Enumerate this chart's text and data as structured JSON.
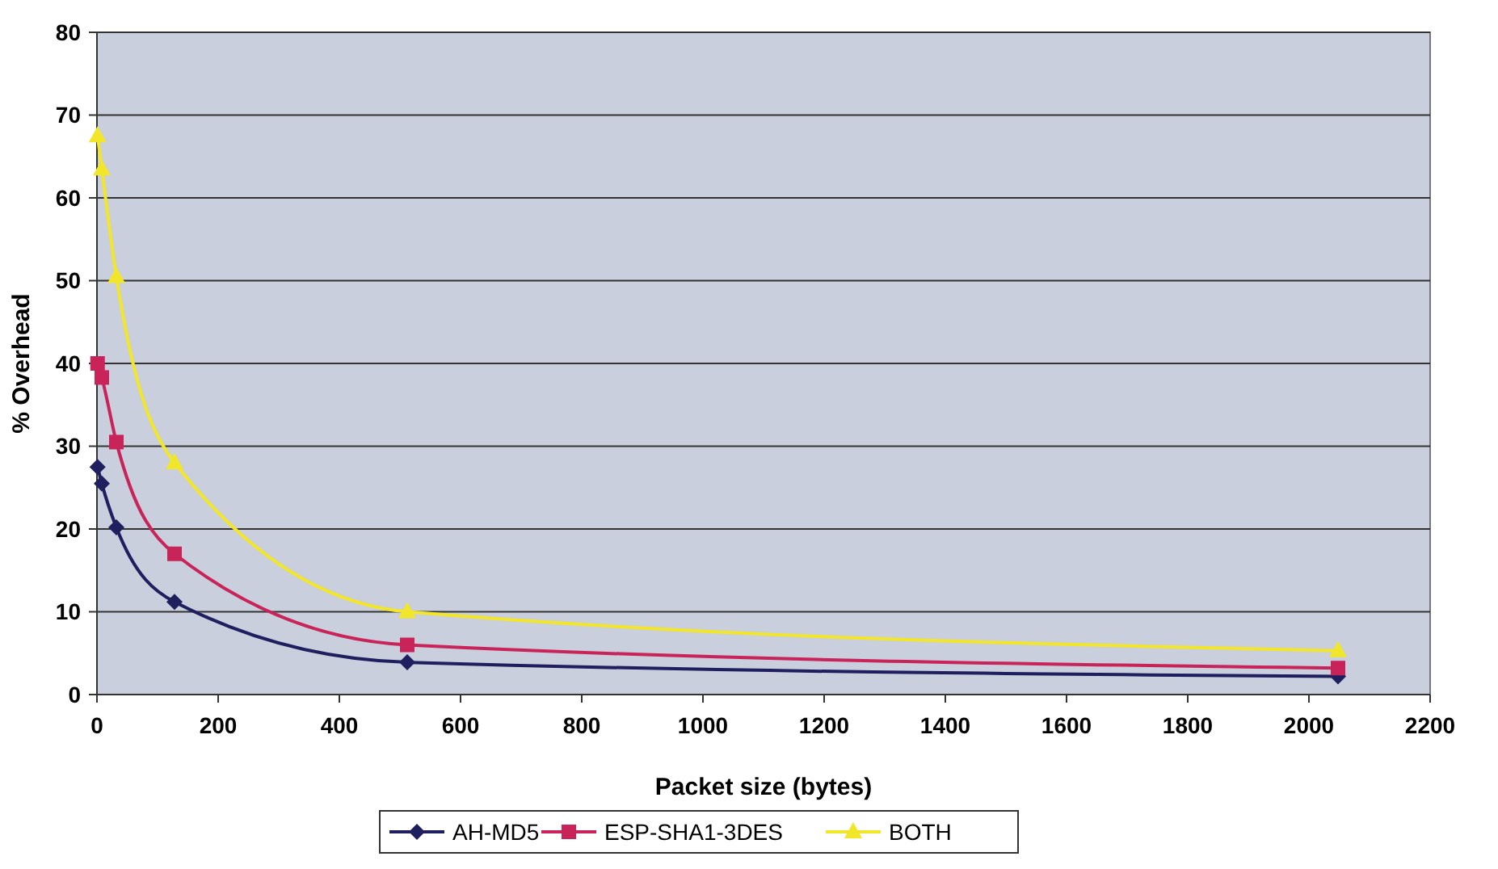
{
  "chart_data": {
    "type": "line",
    "xlabel": "Packet size (bytes)",
    "ylabel": "% Overhead",
    "x": [
      1,
      8,
      32,
      128,
      512,
      2048
    ],
    "series": [
      {
        "name": "AH-MD5",
        "color": "#1f1f5f",
        "marker": "diamond",
        "values": [
          27.5,
          25.5,
          20.2,
          11.2,
          3.9,
          2.2
        ]
      },
      {
        "name": "ESP-SHA1-3DES",
        "color": "#c8245a",
        "marker": "square",
        "values": [
          40,
          38.3,
          30.5,
          17,
          6,
          3.2
        ]
      },
      {
        "name": "BOTH",
        "color": "#f2e62a",
        "marker": "triangle",
        "values": [
          67.5,
          63.5,
          50.5,
          28,
          10,
          5.3
        ]
      }
    ],
    "xlim": [
      0,
      2200
    ],
    "xticks": [
      0,
      200,
      400,
      600,
      800,
      1000,
      1200,
      1400,
      1600,
      1800,
      2000,
      2200
    ],
    "ylim": [
      0,
      80
    ],
    "yticks": [
      0,
      10,
      20,
      30,
      40,
      50,
      60,
      70,
      80
    ],
    "grid": "y",
    "legend": "bottom",
    "line_style": "solid"
  }
}
